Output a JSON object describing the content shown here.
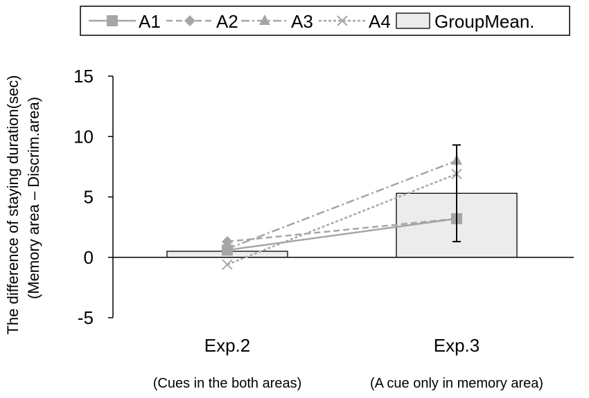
{
  "chart_data": {
    "type": "bar",
    "categories": [
      "Exp.2",
      "Exp.3"
    ],
    "category_sublabels": [
      "(Cues in the both areas)",
      "(A cue only in memory area)"
    ],
    "ylabel": "The difference of staying duration(sec)",
    "ylabel2": "(Memory area – Discrim.area)",
    "ylim": [
      -5,
      15
    ],
    "yticks": [
      -5,
      0,
      5,
      10,
      15
    ],
    "grid": false,
    "legend_position": "top",
    "bars": {
      "name": "GroupMean.",
      "values": [
        0.5,
        5.3
      ],
      "error": [
        [
          null,
          null
        ],
        [
          1.3,
          9.3
        ]
      ],
      "color": "#ececec"
    },
    "series": [
      {
        "name": "A1",
        "values": [
          0.6,
          3.2
        ],
        "marker": "square",
        "dash": "solid",
        "color": "#a6a6a6"
      },
      {
        "name": "A2",
        "values": [
          1.3,
          3.2
        ],
        "marker": "diamond",
        "dash": "dash",
        "color": "#a6a6a6"
      },
      {
        "name": "A3",
        "values": [
          0.7,
          8.0
        ],
        "marker": "triangle",
        "dash": "dashdot",
        "color": "#a6a6a6"
      },
      {
        "name": "A4",
        "values": [
          -0.6,
          6.9
        ],
        "marker": "x",
        "dash": "dot",
        "color": "#a6a6a6"
      }
    ]
  }
}
